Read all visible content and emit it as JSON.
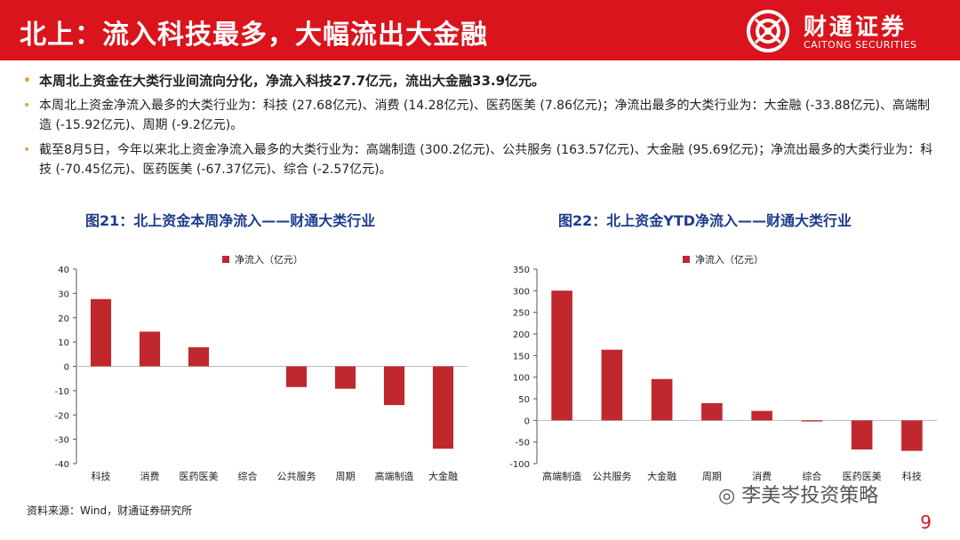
{
  "header": {
    "title": "北上：流入科技最多，大幅流出大金融",
    "logo_cn": "财通证券",
    "logo_en": "CAITONG SECURITIES"
  },
  "bullets": [
    "本周北上资金在大类行业间流向分化，净流入科技27.7亿元，流出大金融33.9亿元。",
    "本周北上资金净流入最多的大类行业为：科技 (27.68亿元)、消费 (14.28亿元)、医药医美 (7.86亿元)；净流出最多的大类行业为：大金融 (-33.88亿元)、高端制造 (-15.92亿元)、周期 (-9.2亿元)。",
    "截至8月5日，今年以来北上资金净流入最多的大类行业为：高端制造 (300.2亿元)、公共服务 (163.57亿元)、大金融 (95.69亿元)；净流出最多的大类行业为：科技 (-70.45亿元)、医药医美 (-67.37亿元)、综合 (-2.57亿元)。"
  ],
  "chart1_title": "图21：北上资金本周净流入——财通大类行业",
  "chart2_title": "图22：北上资金YTD净流入——财通大类行业",
  "source": "资料来源：Wind，财通证券研究所",
  "watermark": "李美岑投资策略",
  "page_number": "9",
  "colors": {
    "brand_red": "#d9141c",
    "bar": "#c0282d",
    "title_blue": "#1f3c8c"
  },
  "chart_data": [
    {
      "type": "bar",
      "title": "图21：北上资金本周净流入——财通大类行业",
      "legend": "净流入（亿元）",
      "categories": [
        "科技",
        "消费",
        "医药医美",
        "综合",
        "公共服务",
        "周期",
        "高端制造",
        "大金融"
      ],
      "values": [
        27.68,
        14.28,
        7.86,
        0,
        -8.5,
        -9.2,
        -15.92,
        -33.88
      ],
      "ylim": [
        -40,
        40
      ],
      "yticks": [
        40,
        30,
        20,
        10,
        0,
        -10,
        -20,
        -30,
        -40
      ]
    },
    {
      "type": "bar",
      "title": "图22：北上资金YTD净流入——财通大类行业",
      "legend": "净流入（亿元）",
      "categories": [
        "高端制造",
        "公共服务",
        "大金融",
        "周期",
        "消费",
        "综合",
        "医药医美",
        "科技"
      ],
      "values": [
        300.2,
        163.57,
        95.69,
        40,
        22,
        -2.57,
        -67.37,
        -70.45
      ],
      "ylim": [
        -100,
        350
      ],
      "yticks": [
        350,
        300,
        250,
        200,
        150,
        100,
        50,
        0,
        -50,
        -100
      ]
    }
  ]
}
